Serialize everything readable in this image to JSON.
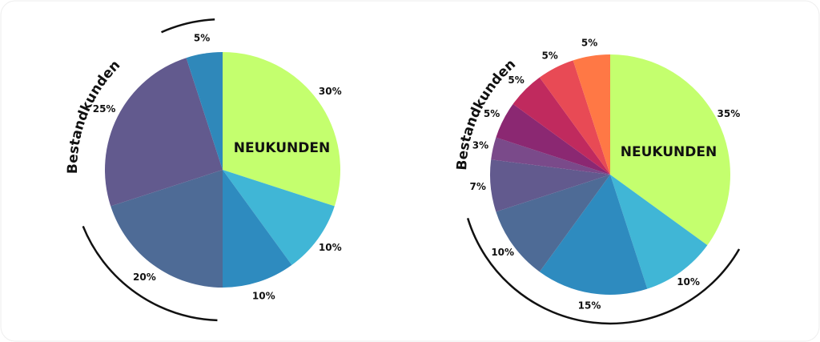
{
  "chart_data": [
    {
      "type": "pie",
      "highlight_label": "NEUKUNDEN",
      "group_label": "Bestandkunden",
      "values": [
        30,
        10,
        10,
        20,
        25,
        5
      ],
      "value_labels": [
        "30%",
        "10%",
        "10%",
        "20%",
        "25%",
        "5%"
      ],
      "colors": [
        "#c4ff6e",
        "#40b6d6",
        "#2e8bbf",
        "#4e6b96",
        "#625a8e",
        "#2f88ba"
      ]
    },
    {
      "type": "pie",
      "highlight_label": "NEUKUNDEN",
      "group_label": "Bestandkunden",
      "values": [
        35,
        10,
        15,
        10,
        7,
        3,
        5,
        5,
        5,
        5
      ],
      "value_labels": [
        "35%",
        "10%",
        "15%",
        "10%",
        "7%",
        "3%",
        "5%",
        "5%",
        "5%",
        "5%"
      ],
      "colors": [
        "#c4ff6e",
        "#40b6d6",
        "#2e8bbf",
        "#4e6b96",
        "#625a8e",
        "#7a4a8a",
        "#8b2872",
        "#c02a5e",
        "#e84a55",
        "#ff7845"
      ]
    }
  ]
}
